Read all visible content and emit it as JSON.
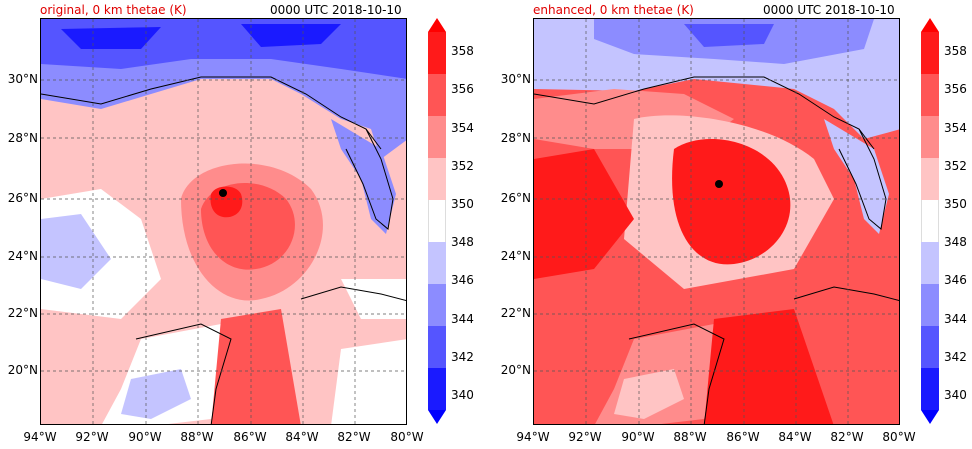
{
  "left_panel": {
    "title": "original, 0 km thetae (K)",
    "time": "0000 UTC 2018-10-10"
  },
  "right_panel": {
    "title": "enhanced, 0 km thetae (K)",
    "time": "0000 UTC 2018-10-10"
  },
  "lat_labels": [
    "30°N",
    "28°N",
    "26°N",
    "24°N",
    "22°N",
    "20°N"
  ],
  "lon_labels": [
    "94°W",
    "92°W",
    "90°W",
    "88°W",
    "86°W",
    "84°W",
    "82°W",
    "80°W"
  ],
  "colorbar": {
    "ticks": [
      "358",
      "356",
      "354",
      "352",
      "350",
      "348",
      "346",
      "344",
      "342",
      "340"
    ],
    "colors": [
      "#ff1a1a",
      "#ff5555",
      "#ff8c8c",
      "#ffc4c4",
      "#ffffff",
      "#c4c4ff",
      "#8c8cff",
      "#5555ff",
      "#1a1aff"
    ],
    "extend": "both"
  }
}
